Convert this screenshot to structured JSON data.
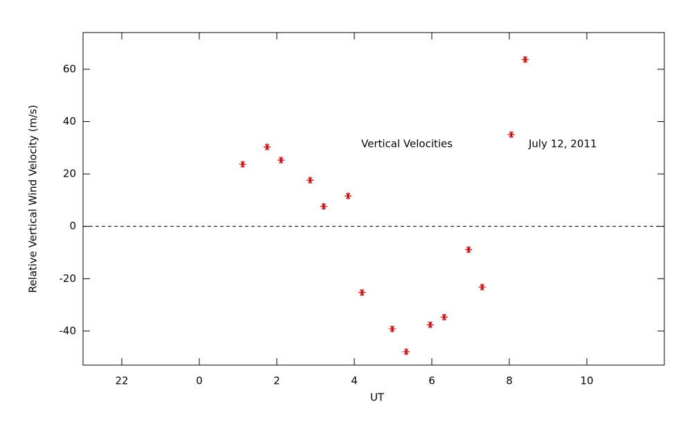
{
  "chart_data": {
    "type": "scatter",
    "x_label": "UT",
    "y_label": "Relative Vertical Wind Velocity (m/s)",
    "annotations": [
      "Vertical Velocities",
      "July 12, 2011"
    ],
    "xlim": [
      -3,
      12
    ],
    "ylim": [
      -53,
      74
    ],
    "xticks": [
      {
        "value": -2,
        "label": "22"
      },
      0,
      2,
      4,
      6,
      8,
      10
    ],
    "yticks": [
      -40,
      -20,
      0,
      20,
      40,
      60
    ],
    "reference_line": 0,
    "series": [
      {
        "color": "#d00000",
        "marker": "asterisk",
        "x": [
          1.12,
          1.75,
          2.11,
          2.86,
          3.21,
          3.84,
          4.2,
          4.98,
          5.34,
          5.96,
          6.32,
          6.95,
          7.3,
          8.05,
          8.41
        ],
        "values": [
          23.7,
          30.3,
          25.3,
          17.6,
          7.6,
          11.6,
          -25.3,
          -39.2,
          -47.9,
          -37.6,
          -34.7,
          -8.9,
          -23.2,
          35.0,
          63.7
        ]
      }
    ]
  }
}
